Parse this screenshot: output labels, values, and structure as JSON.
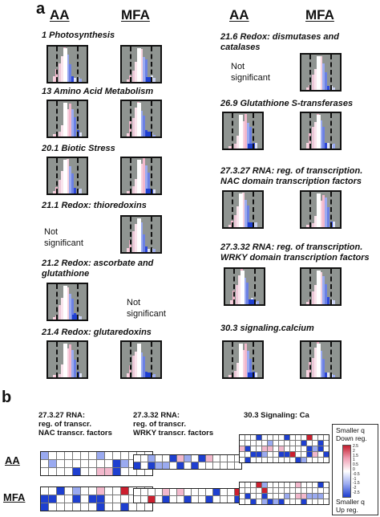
{
  "panel_a": {
    "label": "a",
    "col_headers": [
      "AA",
      "MFA",
      "AA",
      "MFA"
    ],
    "left": [
      {
        "title": [
          "1 Photosynthesis"
        ],
        "aa": true,
        "mfa": true
      },
      {
        "title": [
          "13 Amino Acid Metabolism"
        ],
        "aa": true,
        "mfa": true
      },
      {
        "title": [
          "20.1 Biotic Stress"
        ],
        "aa": true,
        "mfa": true
      },
      {
        "title": [
          "21.1 Redox: thioredoxins"
        ],
        "aa": false,
        "mfa": true
      },
      {
        "title": [
          "21.2 Redox: ascorbate and",
          "glutathione"
        ],
        "aa": true,
        "mfa": false
      },
      {
        "title": [
          "21.4 Redox: glutaredoxins"
        ],
        "aa": true,
        "mfa": true
      }
    ],
    "right": [
      {
        "title": [
          "21.6 Redox: dismutases and",
          "catalases"
        ],
        "aa": false,
        "mfa": true
      },
      {
        "title": [
          "26.9 Glutathione S-transferases"
        ],
        "aa": true,
        "mfa": true
      },
      {
        "title": [
          "27.3.27 RNA: reg. of transcription.",
          "NAC domain transcription factors"
        ],
        "aa": true,
        "mfa": true
      },
      {
        "title": [
          "27.3.32 RNA: reg. of transcription.",
          "WRKY domain transcription factors"
        ],
        "aa": true,
        "mfa": true
      },
      {
        "title": [
          "30.3 signaling.calcium"
        ],
        "aa": true,
        "mfa": true
      }
    ],
    "not_significant": [
      "Not",
      "significant"
    ]
  },
  "panel_b": {
    "label": "b",
    "titles": [
      [
        "27.3.27 RNA:",
        "reg. of transcr.",
        "NAC transcr. factors"
      ],
      [
        "27.3.32 RNA:",
        "reg. of transcr.",
        "WRKY transcr. factors"
      ],
      [
        "30.3 Signaling: Ca"
      ]
    ],
    "row_labels": [
      "AA",
      "MFA"
    ],
    "legend": {
      "top": [
        "Smaller q",
        "Down reg."
      ],
      "bottom": [
        "Smaller q",
        "Up reg."
      ],
      "scale": [
        "2.5",
        "2",
        "1.5",
        "1",
        "0.5",
        "0",
        "-0.5",
        "-1",
        "-1.5",
        "-2",
        "-2.5"
      ]
    }
  },
  "colors": {
    "grid_bg": "#8f9491",
    "up": "#1e3fd0",
    "down": "#cc1f2f",
    "pink": "#f2b8cc"
  }
}
